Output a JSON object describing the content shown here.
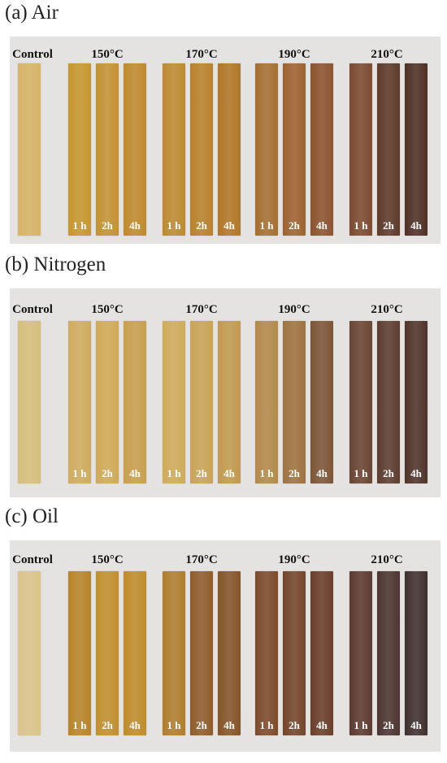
{
  "panels": [
    {
      "title": "(a) Air",
      "groups": [
        "Control",
        "150°C",
        "170°C",
        "190°C",
        "210°C"
      ],
      "durations": [
        "1 h",
        "2h",
        "4h",
        "1 h",
        "2h",
        "4h",
        "1 h",
        "2h",
        "4h",
        "1 h",
        "2h",
        "4h"
      ]
    },
    {
      "title": "(b) Nitrogen",
      "groups": [
        "Control",
        "150°C",
        "170°C",
        "190°C",
        "210°C"
      ],
      "durations": [
        "1 h",
        "2h",
        "4h",
        "1 h",
        "2h",
        "4h",
        "1 h",
        "2h",
        "4h",
        "1 h",
        "2h",
        "4h"
      ]
    },
    {
      "title": "(c) Oil",
      "groups": [
        "Control",
        "150°C",
        "170°C",
        "190°C",
        "210°C"
      ],
      "durations": [
        "1 h",
        "2h",
        "4h",
        "1 h",
        "2h",
        "4h",
        "1 h",
        "2h",
        "4h",
        "1 h",
        "2h",
        "4h"
      ]
    }
  ]
}
